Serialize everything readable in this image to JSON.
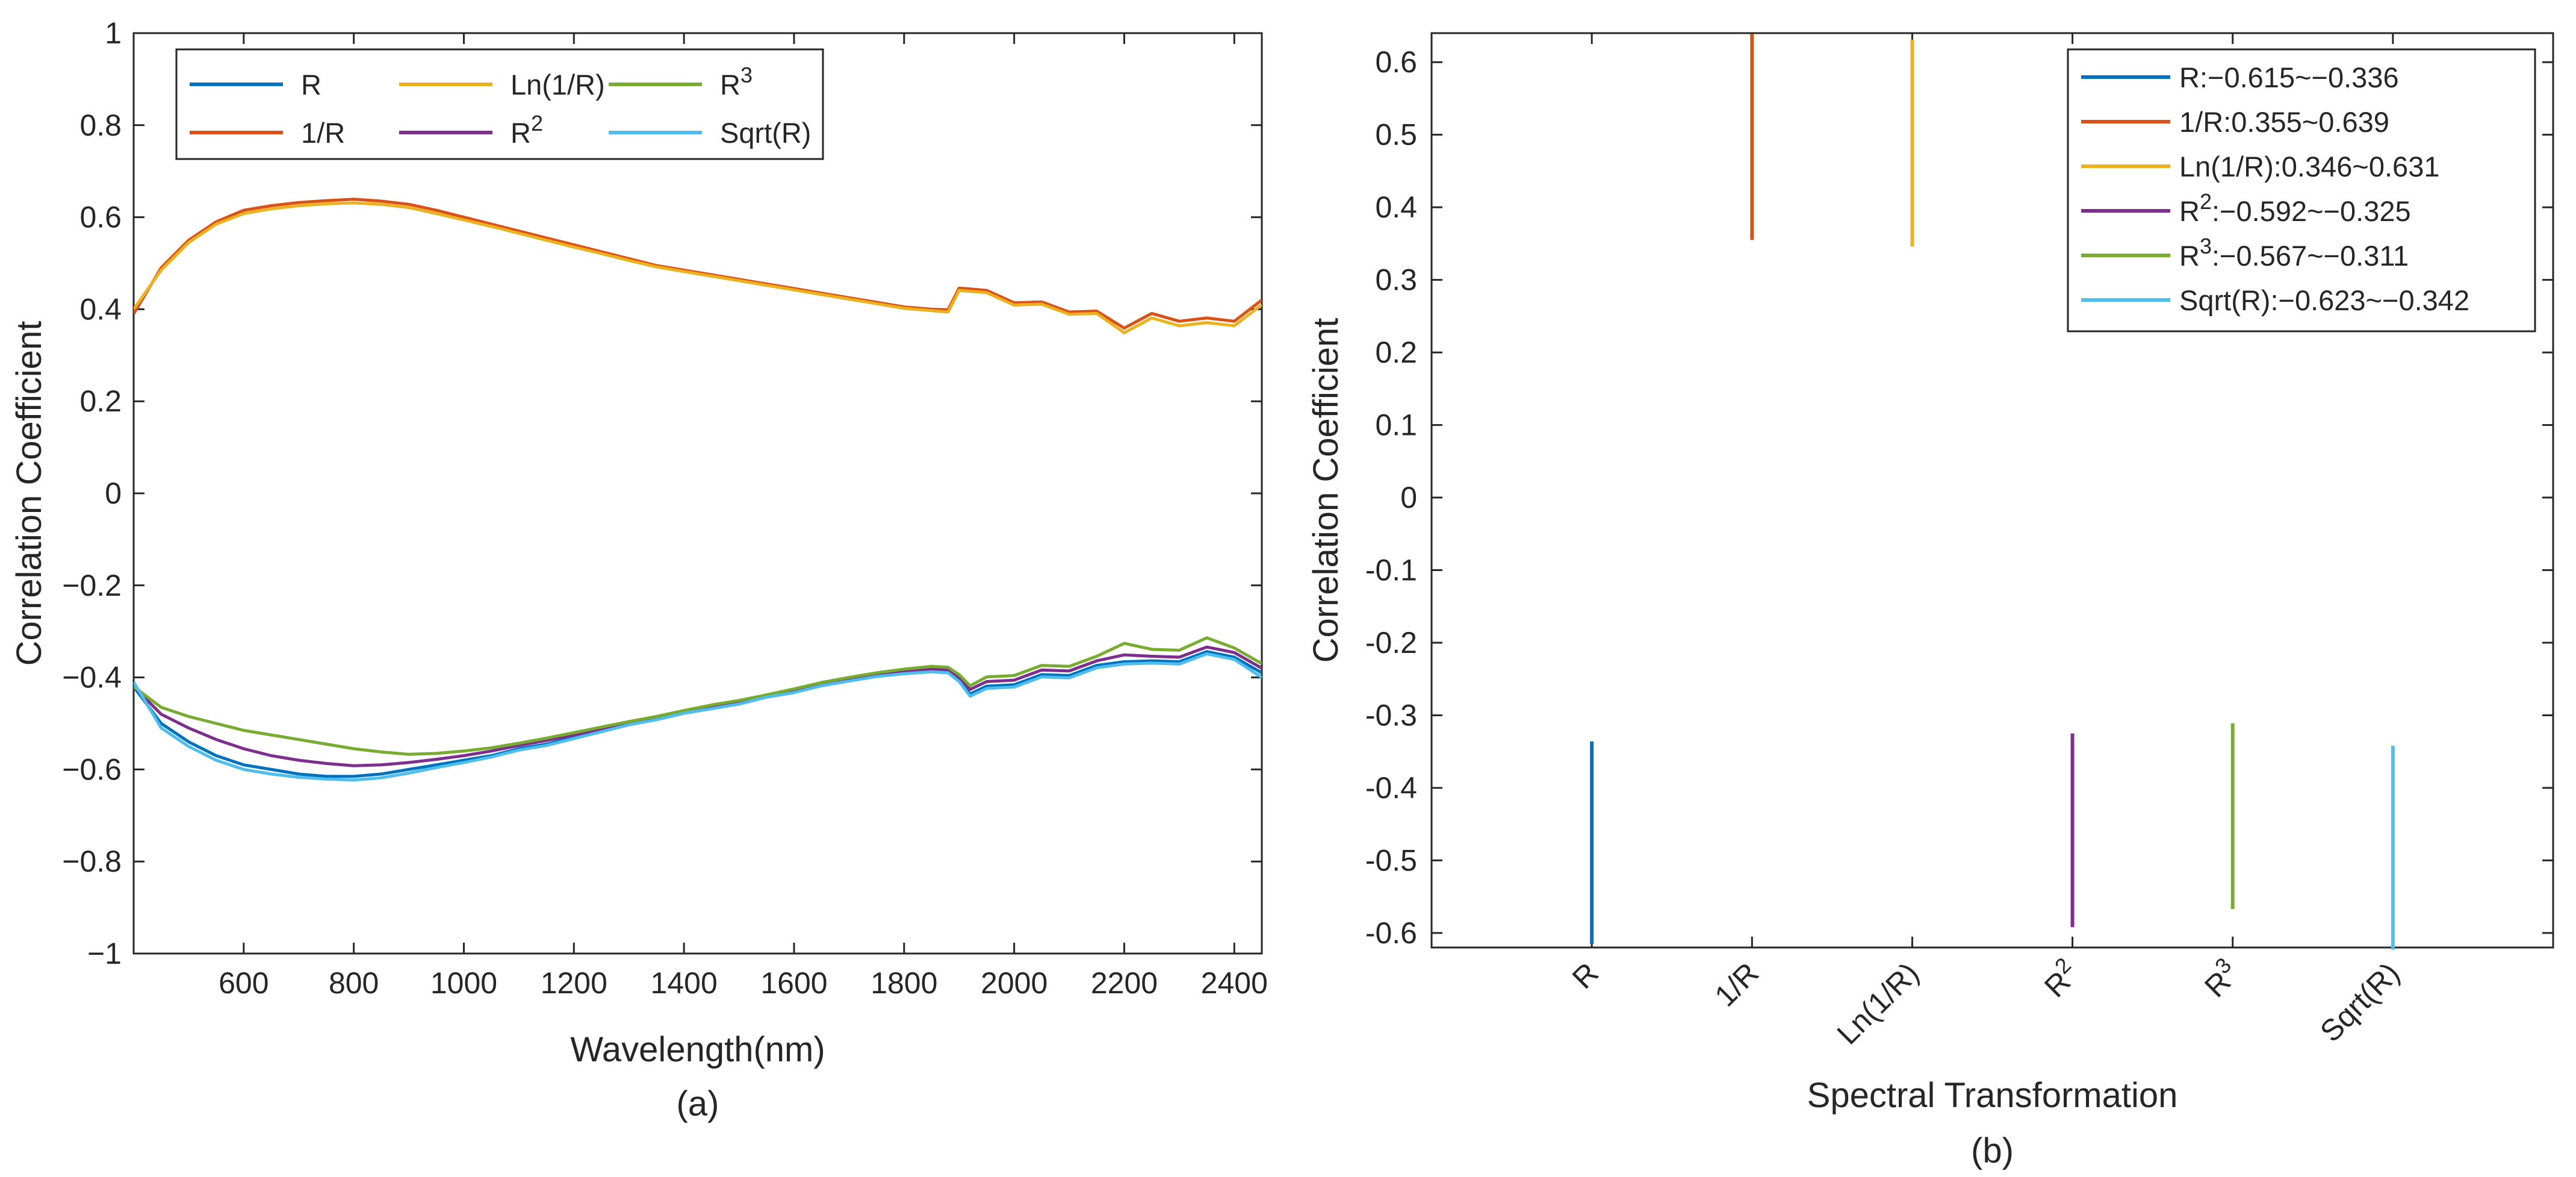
{
  "chart_data": [
    {
      "type": "line",
      "panel_label": "(a)",
      "xlabel": "Wavelength(nm)",
      "ylabel": "Correlation Coefficient",
      "xlim": [
        400,
        2450
      ],
      "ylim": [
        -1,
        1
      ],
      "xticks": [
        600,
        800,
        1000,
        1200,
        1400,
        1600,
        1800,
        2000,
        2200,
        2400
      ],
      "yticks": [
        -1,
        -0.8,
        -0.6,
        -0.4,
        -0.2,
        0,
        0.2,
        0.4,
        0.6,
        0.8,
        1
      ],
      "ytick_labels": [
        "−1",
        "−0.8",
        "−0.6",
        "−0.4",
        "−0.2",
        "0",
        "0.2",
        "0.4",
        "0.6",
        "0.8",
        "1"
      ],
      "grid": false,
      "legend_position": "top-left",
      "x": [
        400,
        450,
        500,
        550,
        600,
        650,
        700,
        750,
        800,
        850,
        900,
        950,
        1000,
        1050,
        1100,
        1150,
        1200,
        1250,
        1300,
        1350,
        1400,
        1450,
        1500,
        1550,
        1600,
        1650,
        1700,
        1750,
        1800,
        1850,
        1880,
        1900,
        1920,
        1950,
        2000,
        2050,
        2100,
        2150,
        2200,
        2250,
        2300,
        2350,
        2400,
        2450
      ],
      "series": [
        {
          "name": "R",
          "label_base": "R",
          "label_sup": "",
          "color": "#0072BD",
          "values": [
            -0.42,
            -0.5,
            -0.54,
            -0.57,
            -0.59,
            -0.6,
            -0.61,
            -0.615,
            -0.615,
            -0.61,
            -0.6,
            -0.59,
            -0.58,
            -0.57,
            -0.555,
            -0.545,
            -0.53,
            -0.515,
            -0.5,
            -0.49,
            -0.475,
            -0.465,
            -0.455,
            -0.44,
            -0.43,
            -0.415,
            -0.405,
            -0.395,
            -0.39,
            -0.385,
            -0.38,
            -0.41,
            -0.43,
            -0.425,
            -0.41,
            -0.4,
            -0.39,
            -0.38,
            -0.36,
            -0.37,
            -0.36,
            -0.35,
            -0.35,
            -0.39
          ]
        },
        {
          "name": "1/R",
          "label_base": "1/R",
          "label_sup": "",
          "color": "#D95319",
          "values": [
            0.39,
            0.49,
            0.55,
            0.59,
            0.615,
            0.625,
            0.632,
            0.636,
            0.639,
            0.635,
            0.628,
            0.615,
            0.6,
            0.585,
            0.57,
            0.555,
            0.54,
            0.525,
            0.51,
            0.495,
            0.485,
            0.475,
            0.465,
            0.455,
            0.445,
            0.435,
            0.425,
            0.415,
            0.405,
            0.4,
            0.405,
            0.44,
            0.45,
            0.435,
            0.42,
            0.41,
            0.4,
            0.39,
            0.365,
            0.385,
            0.38,
            0.375,
            0.38,
            0.42
          ]
        },
        {
          "name": "Ln(1/R)",
          "label_base": "Ln(1/R)",
          "label_sup": "",
          "color": "#EDB120",
          "values": [
            0.4,
            0.485,
            0.545,
            0.585,
            0.608,
            0.618,
            0.625,
            0.629,
            0.631,
            0.628,
            0.621,
            0.608,
            0.594,
            0.58,
            0.565,
            0.55,
            0.535,
            0.521,
            0.506,
            0.492,
            0.482,
            0.472,
            0.462,
            0.452,
            0.442,
            0.432,
            0.422,
            0.412,
            0.402,
            0.397,
            0.4,
            0.435,
            0.445,
            0.43,
            0.415,
            0.405,
            0.395,
            0.385,
            0.355,
            0.375,
            0.37,
            0.365,
            0.37,
            0.41
          ]
        },
        {
          "name": "R^2",
          "label_base": "R",
          "label_sup": "2",
          "color": "#7E2F8E",
          "values": [
            -0.42,
            -0.48,
            -0.51,
            -0.535,
            -0.555,
            -0.57,
            -0.58,
            -0.587,
            -0.592,
            -0.59,
            -0.585,
            -0.578,
            -0.57,
            -0.56,
            -0.548,
            -0.537,
            -0.525,
            -0.512,
            -0.5,
            -0.488,
            -0.474,
            -0.462,
            -0.452,
            -0.44,
            -0.428,
            -0.414,
            -0.404,
            -0.394,
            -0.386,
            -0.382,
            -0.378,
            -0.405,
            -0.42,
            -0.415,
            -0.4,
            -0.39,
            -0.38,
            -0.37,
            -0.345,
            -0.36,
            -0.35,
            -0.34,
            -0.34,
            -0.38
          ]
        },
        {
          "name": "R^3",
          "label_base": "R",
          "label_sup": "3",
          "color": "#77AC30",
          "values": [
            -0.42,
            -0.465,
            -0.485,
            -0.5,
            -0.515,
            -0.525,
            -0.535,
            -0.545,
            -0.555,
            -0.562,
            -0.567,
            -0.565,
            -0.56,
            -0.553,
            -0.543,
            -0.532,
            -0.52,
            -0.508,
            -0.496,
            -0.485,
            -0.472,
            -0.46,
            -0.45,
            -0.438,
            -0.425,
            -0.411,
            -0.4,
            -0.39,
            -0.382,
            -0.376,
            -0.372,
            -0.4,
            -0.412,
            -0.405,
            -0.39,
            -0.38,
            -0.37,
            -0.36,
            -0.32,
            -0.345,
            -0.335,
            -0.32,
            -0.33,
            -0.37
          ]
        },
        {
          "name": "Sqrt(R)",
          "label_base": "Sqrt(R)",
          "label_sup": "",
          "color": "#4DBEEE",
          "values": [
            -0.41,
            -0.51,
            -0.55,
            -0.58,
            -0.6,
            -0.61,
            -0.617,
            -0.621,
            -0.623,
            -0.618,
            -0.608,
            -0.596,
            -0.585,
            -0.573,
            -0.558,
            -0.548,
            -0.533,
            -0.518,
            -0.503,
            -0.492,
            -0.478,
            -0.468,
            -0.458,
            -0.443,
            -0.433,
            -0.418,
            -0.408,
            -0.398,
            -0.392,
            -0.388,
            -0.384,
            -0.415,
            -0.435,
            -0.43,
            -0.415,
            -0.405,
            -0.395,
            -0.385,
            -0.365,
            -0.375,
            -0.365,
            -0.355,
            -0.355,
            -0.4
          ]
        }
      ]
    },
    {
      "type": "range",
      "panel_label": "(b)",
      "xlabel": "Spectral Transformation",
      "ylabel": "Correlation Coefficient",
      "ylim": [
        -0.62,
        0.64
      ],
      "yticks": [
        -0.6,
        -0.5,
        -0.4,
        -0.3,
        -0.2,
        -0.1,
        0,
        0.1,
        0.2,
        0.3,
        0.4,
        0.5,
        0.6
      ],
      "ytick_labels": [
        "-0.6",
        "-0.5",
        "-0.4",
        "-0.3",
        "-0.2",
        "-0.1",
        "0",
        "0.1",
        "0.2",
        "0.3",
        "0.4",
        "0.5",
        "0.6"
      ],
      "grid": false,
      "legend_position": "top-right",
      "categories": [
        {
          "base": "R",
          "sup": ""
        },
        {
          "base": "1/R",
          "sup": ""
        },
        {
          "base": "Ln(1/R)",
          "sup": ""
        },
        {
          "base": "R",
          "sup": "2"
        },
        {
          "base": "R",
          "sup": "3"
        },
        {
          "base": "Sqrt(R)",
          "sup": ""
        }
      ],
      "series": [
        {
          "name": "R",
          "color": "#0072BD",
          "min": -0.615,
          "max": -0.336,
          "legend_base": "R",
          "legend_sup": "",
          "legend_range": ":−0.615~−0.336"
        },
        {
          "name": "1/R",
          "color": "#D95319",
          "min": 0.355,
          "max": 0.639,
          "legend_base": "1/R",
          "legend_sup": "",
          "legend_range": ":0.355~0.639"
        },
        {
          "name": "Ln(1/R)",
          "color": "#EDB120",
          "min": 0.346,
          "max": 0.631,
          "legend_base": "Ln(1/R)",
          "legend_sup": "",
          "legend_range": ":0.346~0.631"
        },
        {
          "name": "R^2",
          "color": "#7E2F8E",
          "min": -0.592,
          "max": -0.325,
          "legend_base": "R",
          "legend_sup": "2",
          "legend_range": ":−0.592~−0.325"
        },
        {
          "name": "R^3",
          "color": "#77AC30",
          "min": -0.567,
          "max": -0.311,
          "legend_base": "R",
          "legend_sup": "3",
          "legend_range": ":−0.567~−0.311"
        },
        {
          "name": "Sqrt(R)",
          "color": "#4DBEEE",
          "min": -0.623,
          "max": -0.342,
          "legend_base": "Sqrt(R)",
          "legend_sup": "",
          "legend_range": ":−0.623~−0.342"
        }
      ]
    }
  ]
}
